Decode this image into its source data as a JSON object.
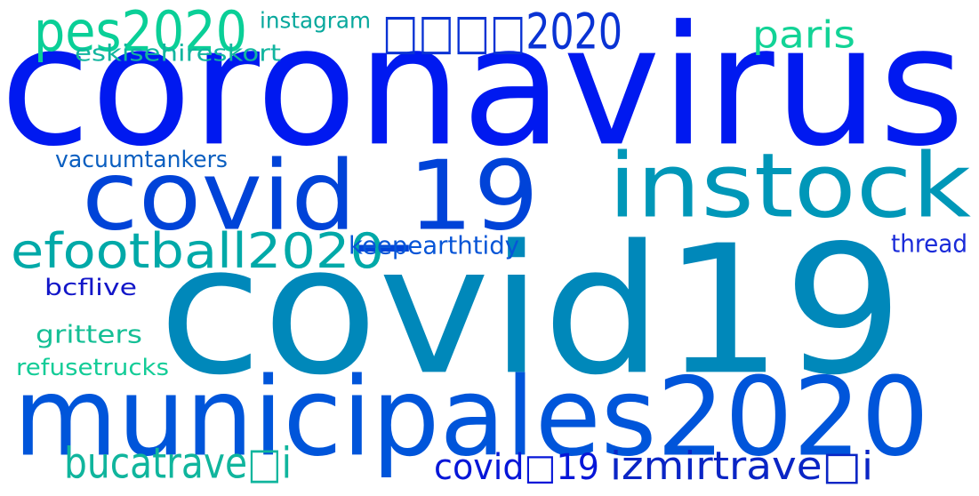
{
  "words": [
    {
      "text": "coronavirus",
      "color": "#0019F0"
    },
    {
      "text": "covid19",
      "color": "#0088BA"
    },
    {
      "text": "municipales2020",
      "color": "#0055DA"
    },
    {
      "text": "instock",
      "color": "#0097B8"
    },
    {
      "text": "covid_19",
      "color": "#0043D8"
    },
    {
      "text": "efootball2020",
      "color": "#00A9A8"
    },
    {
      "text": "pes2020",
      "color": "#0ACF97"
    },
    {
      "text": "□□□□2020",
      "color": "#0A33D4"
    },
    {
      "text": "paris",
      "color": "#12D396"
    },
    {
      "text": "eskisehireskort",
      "color": "#12B59F"
    },
    {
      "text": "instagram",
      "color": "#08A89D"
    },
    {
      "text": "vacuumtankers",
      "color": "#0B5FC0"
    },
    {
      "text": "keepearthtidy",
      "color": "#0755D7"
    },
    {
      "text": "thread",
      "color": "#1A2BD9"
    },
    {
      "text": "bcflive",
      "color": "#1216C8"
    },
    {
      "text": "gritters",
      "color": "#14BF95"
    },
    {
      "text": "refusetrucks",
      "color": "#13CC97"
    },
    {
      "text": "bucatrave□i",
      "color": "#10B59D"
    },
    {
      "text": "covid□19",
      "color": "#0616D8"
    },
    {
      "text": "izmirtrave□i",
      "color": "#0A25C5"
    }
  ]
}
